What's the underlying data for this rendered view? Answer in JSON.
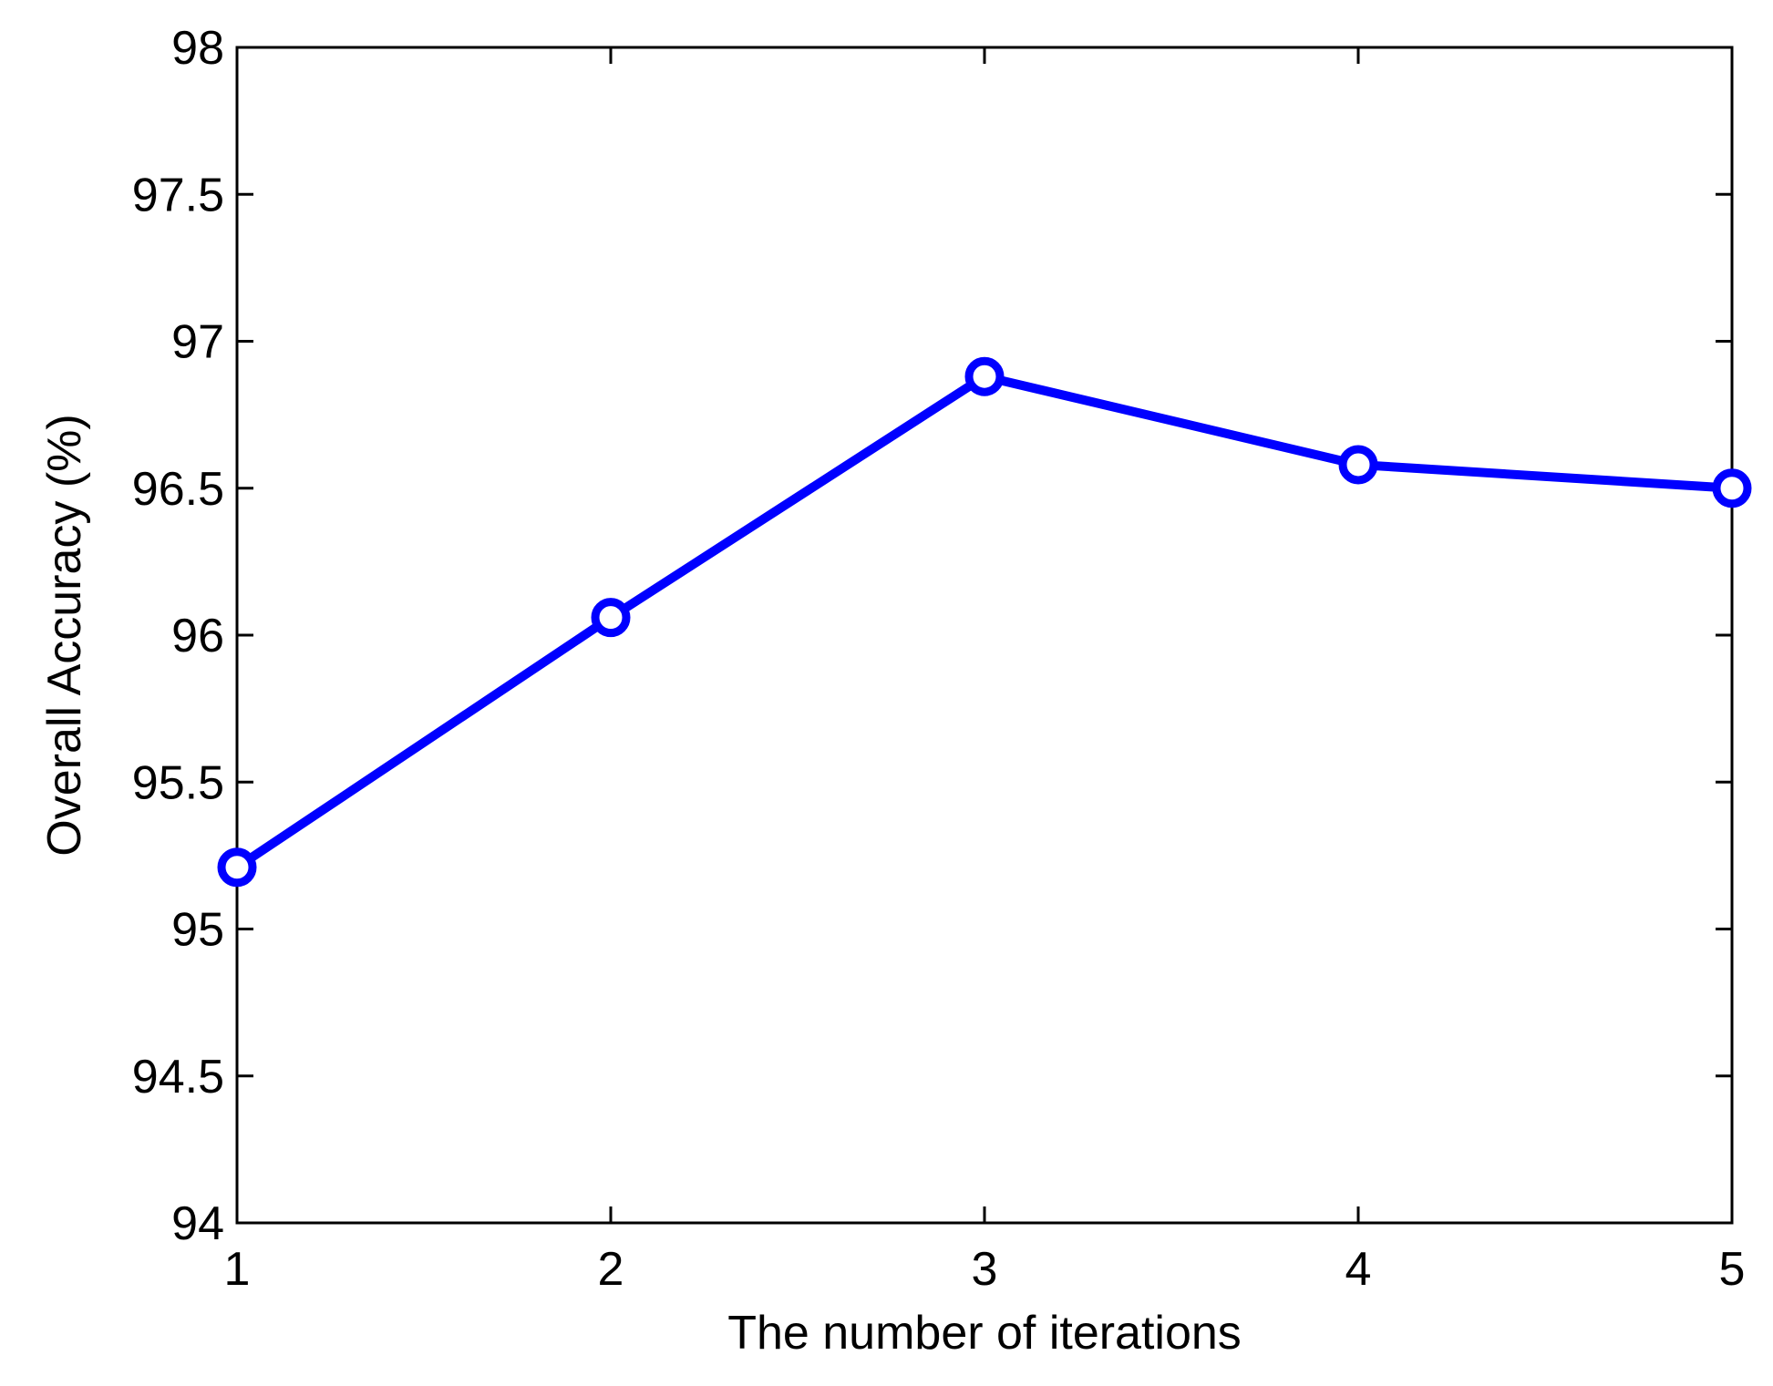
{
  "chart_data": {
    "type": "line",
    "title": "",
    "xlabel": "The number of iterations",
    "ylabel": "Overall Accuracy (%)",
    "x": [
      1,
      2,
      3,
      4,
      5
    ],
    "xlim": [
      1,
      5
    ],
    "ylim": [
      94,
      98
    ],
    "xticks": [
      "1",
      "2",
      "3",
      "4",
      "5"
    ],
    "yticks": [
      "94",
      "94.5",
      "95",
      "95.5",
      "96",
      "96.5",
      "97",
      "97.5",
      "98"
    ],
    "grid": false,
    "legend": "none",
    "series": [
      {
        "values": [
          95.21,
          96.06,
          96.88,
          96.58,
          96.5
        ],
        "color": "#0000ff",
        "marker": "circle-open"
      }
    ]
  }
}
